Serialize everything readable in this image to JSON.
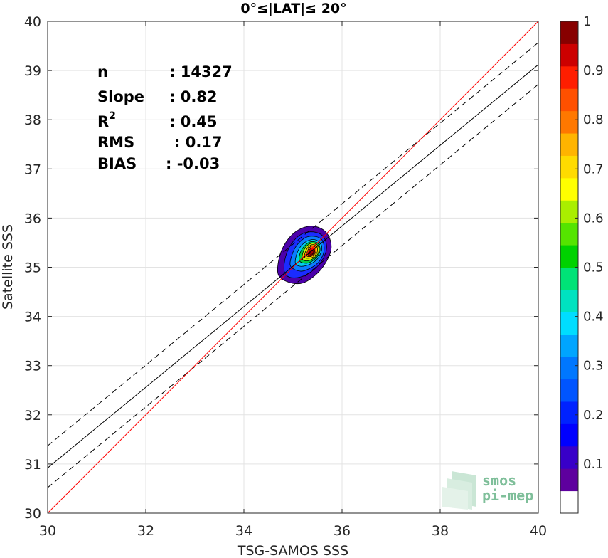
{
  "chart_data": {
    "type": "scatter",
    "title": "0°≤|LAT|≤ 20°",
    "xlabel": "TSG-SAMOS SSS",
    "ylabel": "Satellite SSS",
    "xlim": [
      30,
      40
    ],
    "ylim": [
      30,
      40
    ],
    "xticks": [
      "30",
      "32",
      "34",
      "36",
      "38",
      "40"
    ],
    "yticks": [
      "30",
      "31",
      "32",
      "33",
      "34",
      "35",
      "36",
      "37",
      "38",
      "39",
      "40"
    ],
    "grid": true,
    "stats": [
      {
        "label": "n",
        "sep": ":",
        "value": "14327"
      },
      {
        "label": "Slope",
        "sep": ":",
        "value": "0.82"
      },
      {
        "label": "R",
        "sup": "2",
        "sep": ":",
        "value": "0.45"
      },
      {
        "label": "RMS",
        "sep": ":",
        "value": "0.17"
      },
      {
        "label": "BIAS",
        "sep": ":",
        "value": "-0.03"
      }
    ],
    "lines": {
      "identity": {
        "color": "#ff0000",
        "x": [
          30,
          40
        ],
        "y": [
          30,
          40
        ]
      },
      "regression": {
        "color": "#000000",
        "x": [
          30,
          40
        ],
        "y": [
          30.92,
          39.12
        ]
      },
      "upper_bound": {
        "color": "#000000",
        "dash": true,
        "x": [
          30,
          40
        ],
        "y": [
          31.37,
          39.57
        ]
      },
      "lower_bound": {
        "color": "#000000",
        "dash": true,
        "x": [
          30,
          40
        ],
        "y": [
          30.52,
          38.72
        ]
      }
    },
    "density": {
      "center": [
        35.35,
        35.3
      ],
      "contours": [
        {
          "level": 0.1,
          "color": "#4b00aa",
          "points": [
            [
              34.7,
              34.85
            ],
            [
              34.72,
              35.2
            ],
            [
              34.85,
              35.5
            ],
            [
              35.05,
              35.72
            ],
            [
              35.3,
              35.83
            ],
            [
              35.55,
              35.8
            ],
            [
              35.72,
              35.65
            ],
            [
              35.78,
              35.4
            ],
            [
              35.7,
              35.15
            ],
            [
              35.5,
              34.88
            ],
            [
              35.2,
              34.68
            ],
            [
              34.9,
              34.7
            ]
          ]
        },
        {
          "level": 0.2,
          "color": "#1a2cff",
          "points": [
            [
              34.82,
              34.93
            ],
            [
              34.85,
              35.22
            ],
            [
              34.97,
              35.48
            ],
            [
              35.15,
              35.66
            ],
            [
              35.35,
              35.72
            ],
            [
              35.55,
              35.68
            ],
            [
              35.66,
              35.55
            ],
            [
              35.68,
              35.35
            ],
            [
              35.58,
              35.12
            ],
            [
              35.4,
              34.93
            ],
            [
              35.15,
              34.8
            ],
            [
              34.92,
              34.8
            ]
          ]
        },
        {
          "level": 0.3,
          "color": "#0a7dff",
          "points": [
            [
              34.95,
              35.02
            ],
            [
              34.98,
              35.25
            ],
            [
              35.08,
              35.45
            ],
            [
              35.25,
              35.6
            ],
            [
              35.42,
              35.63
            ],
            [
              35.57,
              35.58
            ],
            [
              35.63,
              35.45
            ],
            [
              35.62,
              35.28
            ],
            [
              35.52,
              35.1
            ],
            [
              35.35,
              34.98
            ],
            [
              35.15,
              34.92
            ]
          ]
        },
        {
          "level": 0.4,
          "color": "#00ccee",
          "points": [
            [
              35.05,
              35.08
            ],
            [
              35.08,
              35.28
            ],
            [
              35.18,
              35.45
            ],
            [
              35.33,
              35.55
            ],
            [
              35.48,
              35.55
            ],
            [
              35.58,
              35.45
            ],
            [
              35.57,
              35.3
            ],
            [
              35.48,
              35.15
            ],
            [
              35.32,
              35.05
            ],
            [
              35.15,
              35.02
            ]
          ]
        },
        {
          "level": 0.5,
          "color": "#00cc44",
          "points": [
            [
              35.13,
              35.13
            ],
            [
              35.15,
              35.3
            ],
            [
              35.24,
              35.44
            ],
            [
              35.36,
              35.52
            ],
            [
              35.49,
              35.5
            ],
            [
              35.55,
              35.4
            ],
            [
              35.53,
              35.27
            ],
            [
              35.43,
              35.15
            ],
            [
              35.28,
              35.08
            ]
          ]
        },
        {
          "level": 0.6,
          "color": "#ccee00",
          "points": [
            [
              35.19,
              35.17
            ],
            [
              35.21,
              35.32
            ],
            [
              35.29,
              35.44
            ],
            [
              35.39,
              35.49
            ],
            [
              35.49,
              35.46
            ],
            [
              35.53,
              35.37
            ],
            [
              35.5,
              35.26
            ],
            [
              35.4,
              35.17
            ],
            [
              35.28,
              35.13
            ]
          ]
        },
        {
          "level": 0.7,
          "color": "#ffcc00",
          "points": [
            [
              35.24,
              35.2
            ],
            [
              35.26,
              35.33
            ],
            [
              35.33,
              35.43
            ],
            [
              35.41,
              35.46
            ],
            [
              35.48,
              35.43
            ],
            [
              35.5,
              35.34
            ],
            [
              35.46,
              35.25
            ],
            [
              35.37,
              35.19
            ]
          ]
        },
        {
          "level": 0.8,
          "color": "#ff6600",
          "points": [
            [
              35.28,
              35.23
            ],
            [
              35.3,
              35.34
            ],
            [
              35.36,
              35.42
            ],
            [
              35.43,
              35.43
            ],
            [
              35.47,
              35.37
            ],
            [
              35.45,
              35.28
            ],
            [
              35.37,
              35.22
            ]
          ]
        },
        {
          "level": 0.9,
          "color": "#ff0000",
          "points": [
            [
              35.31,
              35.25
            ],
            [
              35.33,
              35.34
            ],
            [
              35.38,
              35.39
            ],
            [
              35.43,
              35.38
            ],
            [
              35.44,
              35.31
            ],
            [
              35.39,
              35.25
            ]
          ]
        },
        {
          "level": 1.0,
          "color": "#aa0000",
          "points": [
            [
              35.34,
              35.27
            ],
            [
              35.35,
              35.33
            ],
            [
              35.39,
              35.35
            ],
            [
              35.42,
              35.32
            ],
            [
              35.4,
              35.27
            ]
          ]
        }
      ]
    },
    "colorbar": {
      "range": [
        0,
        1
      ],
      "labels": [
        "0.1",
        "0.2",
        "0.3",
        "0.4",
        "0.5",
        "0.6",
        "0.7",
        "0.8",
        "0.9",
        "1"
      ],
      "bands": [
        "#ffffff",
        "#5e009e",
        "#3800c8",
        "#0000ff",
        "#0022ff",
        "#0055ff",
        "#0077ff",
        "#00a5ff",
        "#00ddff",
        "#00e2c0",
        "#00e377",
        "#00d200",
        "#55e400",
        "#aaee00",
        "#ffff00",
        "#ffdb00",
        "#ffb400",
        "#ff7800",
        "#ff5000",
        "#ff1e00",
        "#cc0000",
        "#870000"
      ]
    }
  },
  "logo": {
    "line1": "smos",
    "line2": "pi-mep"
  }
}
